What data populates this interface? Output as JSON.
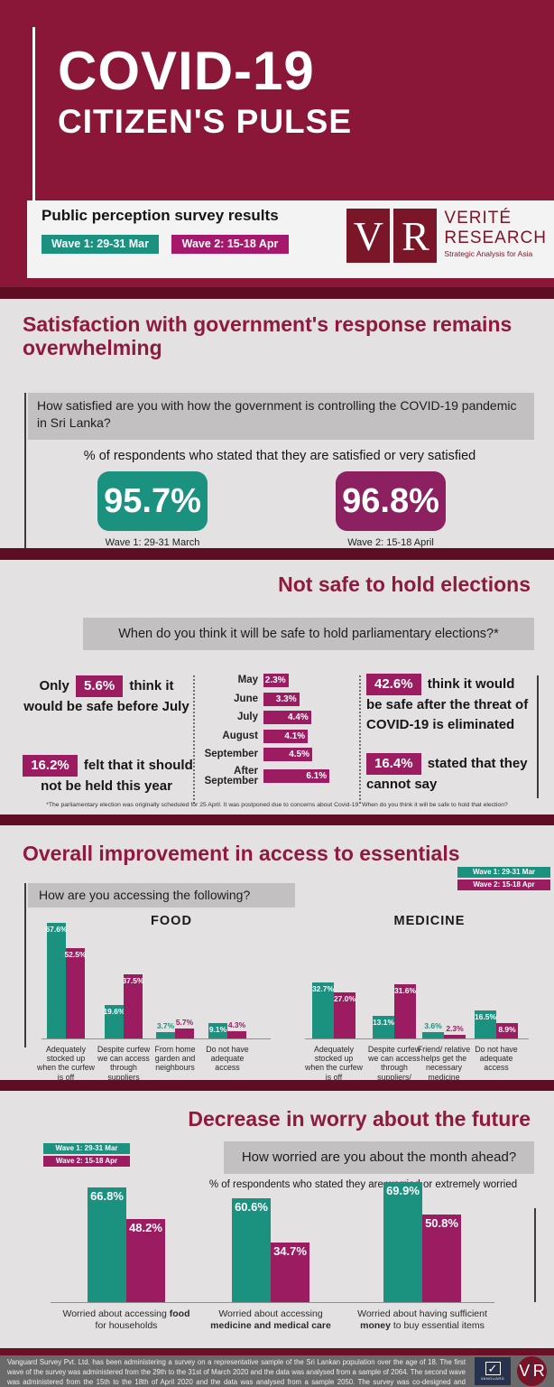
{
  "colors": {
    "maroon": "#8a1638",
    "maroon_dark": "#5e0e24",
    "title_maroon": "#8f1a3d",
    "teal": "#1b9180",
    "magenta": "#9c1c62",
    "kpi_magenta": "#8d2060",
    "section_bg": "#e3e1e1",
    "question_bg": "#c2c0c0",
    "footer_bg": "#6a6a6a",
    "navy": "#27324f"
  },
  "legend": {
    "wave1": "Wave 1: 29-31 Mar",
    "wave2": "Wave 2: 15-18 Apr"
  },
  "header": {
    "title_line1": "COVID-19",
    "title_line2": "CITIZEN'S PULSE",
    "subtitle": "Public perception survey results",
    "logo": {
      "letter_v": "V",
      "letter_r": "R",
      "name_line1": "VERITÉ",
      "name_line2": "RESEARCH",
      "tagline": "Strategic Analysis for Asia"
    }
  },
  "sections": {
    "satisfaction": {
      "title": "Satisfaction with government's response remains overwhelming",
      "question": "How satisfied are you with how the government is controlling the COVID-19 pandemic in Sri Lanka?",
      "subtitle": "% of respondents who stated that they are satisfied or very satisfied",
      "wave1_value": "95.7%",
      "wave1_label": "Wave 1: 29-31 March",
      "wave2_value": "96.8%",
      "wave2_label": "Wave 2: 15-18 April"
    },
    "elections": {
      "title": "Not safe to hold elections",
      "question": "When do you think it will be safe to hold parliamentary elections?*",
      "left_stats": [
        {
          "prefix": "Only ",
          "value": "5.6%",
          "text": " think it would be safe before July"
        },
        {
          "prefix": "",
          "value": "16.2%",
          "text": " felt that it should not be held this year"
        }
      ],
      "right_stats": [
        {
          "prefix": "",
          "value": "42.6%",
          "text": " think it would be safe after the threat of COVID-19 is eliminated"
        },
        {
          "prefix": "",
          "value": "16.4%",
          "text": " stated that they cannot say"
        }
      ],
      "footnote": "*The parliamentary election was originally scheduled for 25 April. It was postponed due to concerns about Covid-19. When do you think it will be safe to hold that election?"
    },
    "access": {
      "title": "Overall improvement in access to essentials",
      "question": "How are you accessing the following?",
      "food_title": "FOOD",
      "medicine_title": "MEDICINE"
    },
    "worry": {
      "title": "Decrease in worry about the future",
      "question": "How worried are you about the month ahead?",
      "subtitle": "% of respondents who stated they are worried or extremely worried",
      "categories_rich": [
        {
          "pre": "Worried about accessing ",
          "bold": "food",
          "post": " for households"
        },
        {
          "pre": "Worried about accessing ",
          "bold": "medicine and medical care",
          "post": ""
        },
        {
          "pre": "Worried about having sufficient ",
          "bold": "money",
          "post": " to buy essential items"
        }
      ]
    }
  },
  "footer": {
    "text": "Vanguard Survey Pvt. Ltd. has been administering a survey on a representative sample of the Sri Lankan population over the age of 18. The first wave of the survey was administered from the 29th to the 31st of March 2020 and the data was analysed from a sample of 2064. The second wave was administered from the 15th to the 18th of April 2020 and the data was analysed from a sample 2050. The survey was co-designed and analysed by Verité Research Pvt. Ltd.",
    "vanguard_check": "✓",
    "vanguard_label": "VANGUARD",
    "vr_logo": {
      "letter_v": "V",
      "letter_r": "R"
    }
  },
  "chart_data": [
    {
      "id": "elections",
      "type": "bar",
      "orientation": "horizontal",
      "title": "When do you think it will be safe to hold parliamentary elections?*",
      "categories": [
        "May",
        "June",
        "July",
        "August",
        "September",
        "After September"
      ],
      "values": [
        2.3,
        3.3,
        4.4,
        4.1,
        4.5,
        6.1
      ],
      "unit": "%",
      "bar_color": "#9c1c62",
      "xlim": [
        0,
        7
      ],
      "grid": false
    },
    {
      "id": "food",
      "type": "bar",
      "title": "FOOD",
      "categories": [
        "Adequately stocked up when the curfew is off",
        "Despite curfew we can access through suppliers",
        "From home garden and neighbours",
        "Do not have adequate access"
      ],
      "series": [
        {
          "name": "Wave 1: 29-31 Mar",
          "color": "#1b9180",
          "values": [
            67.6,
            19.6,
            3.7,
            9.1
          ]
        },
        {
          "name": "Wave 2: 15-18 Apr",
          "color": "#9c1c62",
          "values": [
            52.5,
            37.5,
            5.7,
            4.3
          ]
        }
      ],
      "unit": "%",
      "ylim": [
        0,
        70
      ],
      "grid": false,
      "legend_position": "top-right"
    },
    {
      "id": "medicine",
      "type": "bar",
      "title": "MEDICINE",
      "categories": [
        "Adequately stocked up when the curfew is off",
        "Despite curfew we can access through suppliers/ pharmacies",
        "Friend/ relative helps get the necessary medicine",
        "Do not have adequate access"
      ],
      "series": [
        {
          "name": "Wave 1: 29-31 Mar",
          "color": "#1b9180",
          "values": [
            32.7,
            13.1,
            3.6,
            16.5
          ]
        },
        {
          "name": "Wave 2: 15-18 Apr",
          "color": "#9c1c62",
          "values": [
            27.0,
            31.6,
            2.3,
            8.9
          ]
        }
      ],
      "unit": "%",
      "ylim": [
        0,
        70
      ],
      "grid": false
    },
    {
      "id": "worry",
      "type": "bar",
      "title": "How worried are you about the month ahead?",
      "categories": [
        "Worried about accessing food for households",
        "Worried about accessing medicine and medical care",
        "Worried about having sufficient money to buy essential items"
      ],
      "series": [
        {
          "name": "Wave 1: 29-31 Mar",
          "color": "#1b9180",
          "values": [
            66.8,
            60.6,
            69.9
          ]
        },
        {
          "name": "Wave 2: 15-18 Apr",
          "color": "#9c1c62",
          "values": [
            48.2,
            34.7,
            50.8
          ]
        }
      ],
      "unit": "%",
      "ylim": [
        0,
        80
      ],
      "grid": false,
      "legend_position": "top-left"
    }
  ]
}
